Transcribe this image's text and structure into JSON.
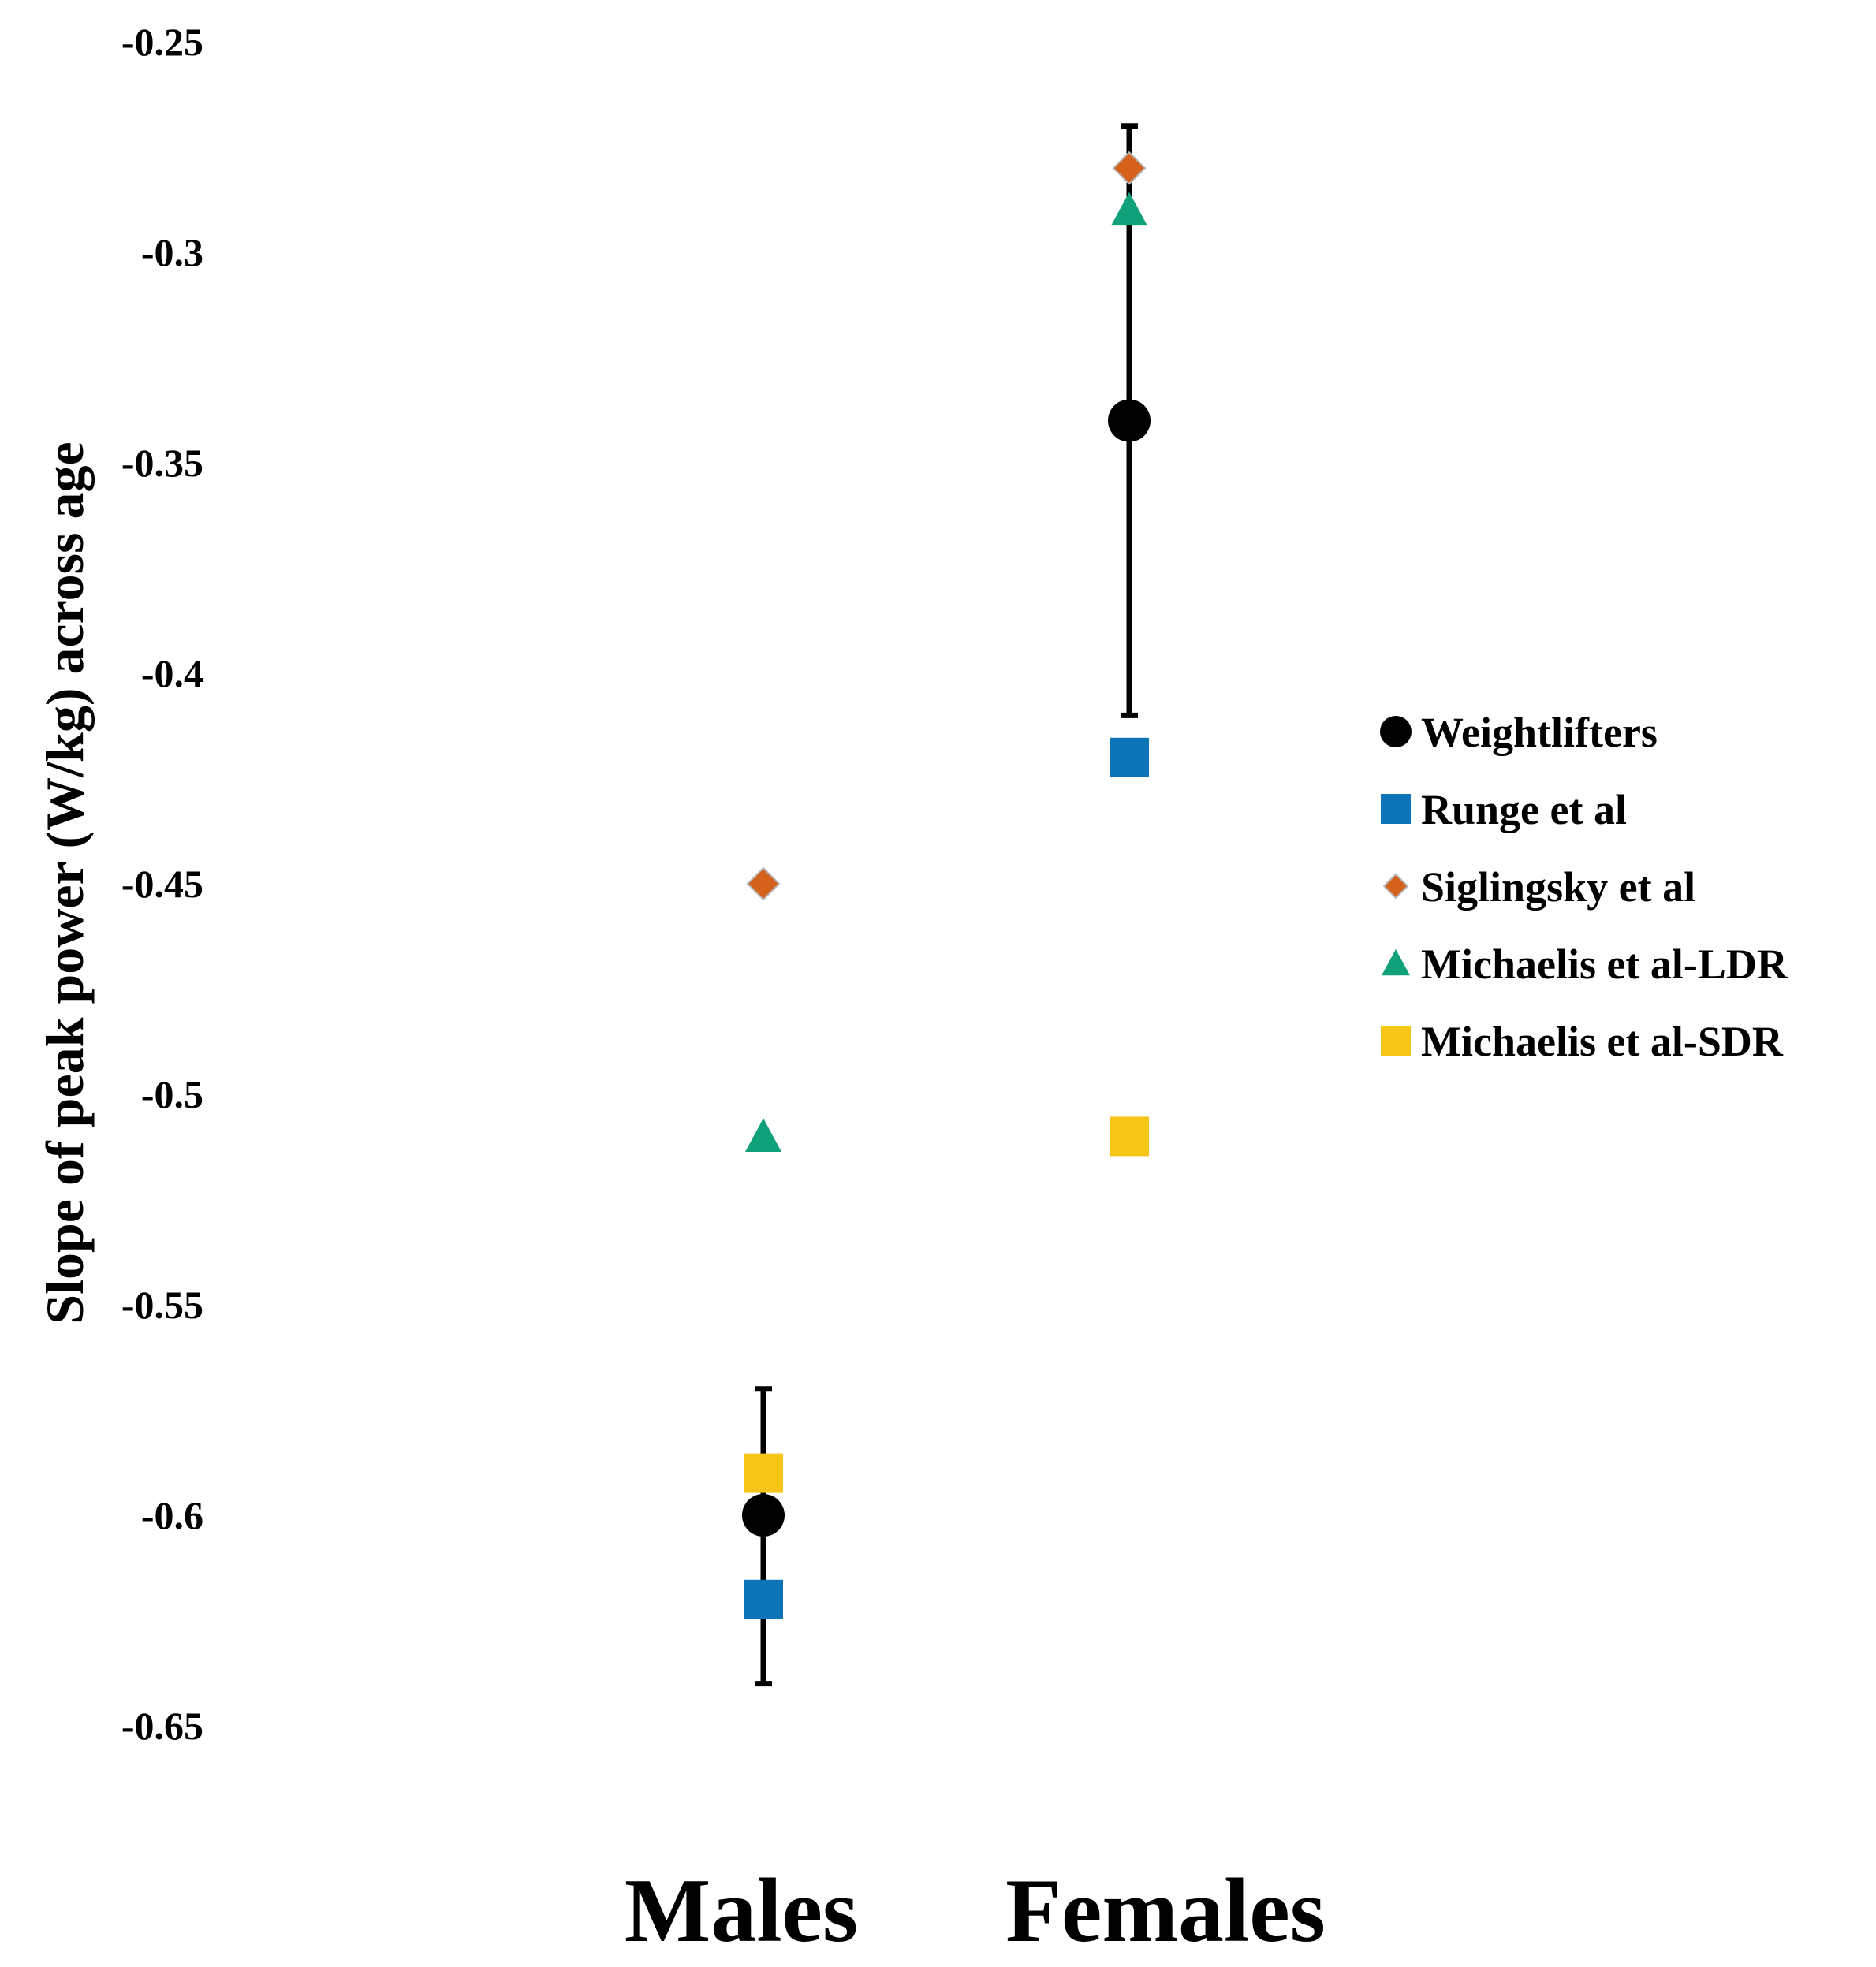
{
  "chart_data": {
    "type": "scatter",
    "title": "",
    "xlabel": "",
    "ylabel": "Slope of peak power (W/kg) across age",
    "categories": [
      "Males",
      "Females"
    ],
    "ylim": [
      -0.65,
      -0.25
    ],
    "yticks": [
      -0.25,
      -0.3,
      -0.35,
      -0.4,
      -0.45,
      -0.5,
      -0.55,
      -0.6,
      -0.65
    ],
    "ytick_labels": [
      "-0.25",
      "-0.3",
      "-0.35",
      "-0.4",
      "-0.45",
      "-0.5",
      "-0.55",
      "-0.6",
      "-0.65"
    ],
    "grid": false,
    "legend_position": "right",
    "series": [
      {
        "name": "Weightlifters",
        "marker": "circle",
        "color": "#000000",
        "values": [
          -0.6,
          -0.34
        ],
        "error_low": [
          -0.64,
          -0.41
        ],
        "error_high": [
          -0.57,
          -0.27
        ]
      },
      {
        "name": "Runge et al",
        "marker": "square",
        "color": "#0e74b8",
        "values": [
          -0.62,
          -0.42
        ]
      },
      {
        "name": "Siglingsky et al",
        "marker": "diamond",
        "color": "#d5621c",
        "values": [
          -0.45,
          -0.28
        ]
      },
      {
        "name": "Michaelis et al-LDR",
        "marker": "triangle",
        "color": "#10a07a",
        "values": [
          -0.51,
          -0.29
        ]
      },
      {
        "name": "Michaelis et al-SDR",
        "marker": "square",
        "color": "#f5c518",
        "values": [
          -0.59,
          -0.51
        ]
      }
    ]
  }
}
